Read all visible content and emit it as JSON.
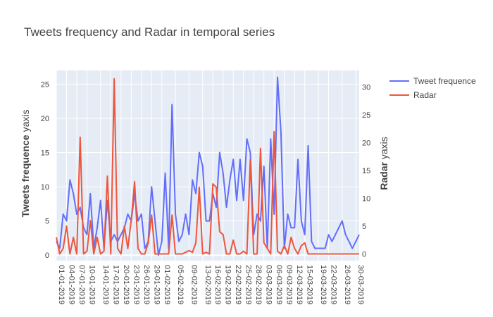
{
  "chart_data": {
    "type": "line",
    "title": "Tweets frequency and Radar in temporal series",
    "xlabel": "",
    "y1label_bold": "Tweets frequence",
    "y1label_rest": " yaxis",
    "y2label_bold": "Radar",
    "y2label_rest": " yaxis",
    "y1lim": [
      -0.8,
      27
    ],
    "y2lim": [
      -1.2,
      33
    ],
    "y1ticks": [
      0,
      5,
      10,
      15,
      20,
      25
    ],
    "y2ticks": [
      0,
      5,
      10,
      15,
      20,
      25,
      30
    ],
    "grid": true,
    "legend_position": "top-right",
    "x": [
      "01-01-2019",
      "02-01-2019",
      "03-01-2019",
      "04-01-2019",
      "05-01-2019",
      "06-01-2019",
      "07-01-2019",
      "08-01-2019",
      "09-01-2019",
      "10-01-2019",
      "11-01-2019",
      "12-01-2019",
      "13-01-2019",
      "14-01-2019",
      "15-01-2019",
      "16-01-2019",
      "17-01-2019",
      "18-01-2019",
      "19-01-2019",
      "20-01-2019",
      "21-01-2019",
      "22-01-2019",
      "23-01-2019",
      "24-01-2019",
      "25-01-2019",
      "26-01-2019",
      "27-01-2019",
      "28-01-2019",
      "29-01-2019",
      "30-01-2019",
      "31-01-2019",
      "01-02-2019",
      "02-02-2019",
      "03-02-2019",
      "04-02-2019",
      "05-02-2019",
      "06-02-2019",
      "07-02-2019",
      "08-02-2019",
      "09-02-2019",
      "10-02-2019",
      "11-02-2019",
      "12-02-2019",
      "13-02-2019",
      "14-02-2019",
      "15-02-2019",
      "16-02-2019",
      "17-02-2019",
      "18-02-2019",
      "19-02-2019",
      "20-02-2019",
      "21-02-2019",
      "22-02-2019",
      "23-02-2019",
      "24-02-2019",
      "25-02-2019",
      "26-02-2019",
      "27-02-2019",
      "28-02-2019",
      "01-03-2019",
      "02-03-2019",
      "03-03-2019",
      "04-03-2019",
      "05-03-2019",
      "06-03-2019",
      "07-03-2019",
      "08-03-2019",
      "09-03-2019",
      "10-03-2019",
      "11-03-2019",
      "12-03-2019",
      "13-03-2019",
      "14-03-2019",
      "15-03-2019",
      "16-03-2019",
      "17-03-2019",
      "18-03-2019",
      "19-03-2019",
      "20-03-2019",
      "21-03-2019",
      "22-03-2019",
      "23-03-2019",
      "24-03-2019",
      "25-03-2019",
      "26-03-2019",
      "27-03-2019",
      "28-03-2019",
      "29-03-2019",
      "30-03-2019",
      "31-03-2019"
    ],
    "xtick_labels": [
      "01-01-2019",
      "04-01-2019",
      "07-01-2019",
      "10-01-2019",
      "14-01-2019",
      "17-01-2019",
      "20-01-2019",
      "23-01-2019",
      "26-01-2019",
      "29-01-2019",
      "01-02-2019",
      "05-02-2019",
      "09-02-2019",
      "13-02-2019",
      "16-02-2019",
      "19-02-2019",
      "22-02-2019",
      "25-02-2019",
      "28-02-2019",
      "03-03-2019",
      "06-03-2019",
      "09-03-2019",
      "12-03-2019",
      "15-03-2019",
      "19-03-2019",
      "22-03-2019",
      "26-03-2019",
      "30-03-2019"
    ],
    "series": [
      {
        "name": "Tweet frequence",
        "axis": "y1",
        "color": "#636efa",
        "values": [
          2,
          1,
          6,
          5,
          11,
          9,
          6,
          7,
          4,
          3,
          9,
          1,
          4,
          8,
          1,
          8,
          2,
          3,
          2,
          3,
          4,
          6,
          5,
          9,
          5,
          6,
          1,
          2,
          10,
          5,
          0,
          2,
          12,
          1,
          22,
          6,
          2,
          3,
          6,
          3,
          11,
          9,
          15,
          13,
          5,
          5,
          9,
          7,
          15,
          12,
          7,
          11,
          14,
          8,
          14,
          8,
          17,
          15,
          3,
          6,
          5,
          13,
          1,
          17,
          6,
          26,
          18,
          1,
          6,
          4,
          4,
          14,
          5,
          3,
          16,
          2,
          1,
          1,
          1,
          1,
          3,
          2,
          3,
          4,
          5,
          3,
          2,
          1,
          2,
          3
        ]
      },
      {
        "name": "Radar",
        "axis": "y2",
        "color": "#ef553b",
        "values": [
          3,
          0,
          1,
          5,
          0,
          3,
          0,
          21,
          0,
          0.5,
          6,
          0,
          3,
          0,
          0.5,
          14,
          0,
          31.5,
          1,
          0,
          5,
          1,
          6,
          13,
          1,
          0,
          0,
          2,
          7,
          0,
          0,
          0,
          0,
          0,
          7,
          0,
          0,
          0,
          0.3,
          0.6,
          0.3,
          2,
          12,
          0,
          0.3,
          0,
          12.6,
          12,
          4,
          3.5,
          0,
          0,
          2.5,
          0,
          0,
          0.5,
          0,
          17,
          0,
          0,
          19,
          2,
          1,
          0,
          22,
          0.5,
          0,
          1.5,
          0,
          3,
          1,
          0,
          1.5,
          2,
          0,
          0,
          0,
          0,
          0,
          0,
          0,
          0,
          0,
          0,
          0,
          0,
          0,
          0,
          0,
          0
        ]
      }
    ]
  }
}
